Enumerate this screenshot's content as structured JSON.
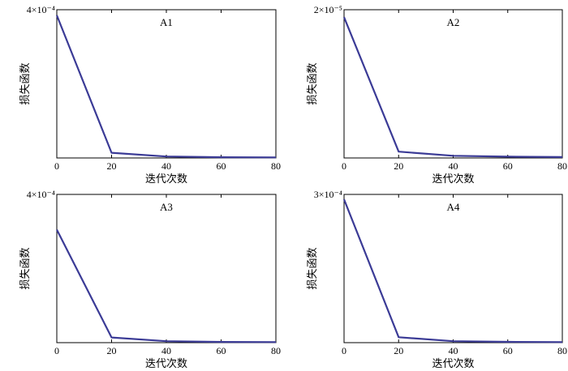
{
  "colors": {
    "series": "#3b3b96",
    "axis": "#000000"
  },
  "chart_data": [
    {
      "type": "line",
      "title": "A1",
      "xlabel": "迭代次数",
      "ylabel": "损失函数",
      "ymax_label": "4×10⁻⁴",
      "xlim": [
        0,
        80
      ],
      "ylim": [
        0,
        0.0004
      ],
      "xticks": [
        "0",
        "20",
        "40",
        "60",
        "80"
      ],
      "grid": false,
      "series": [
        {
          "x": [
            0,
            20,
            40,
            60,
            80
          ],
          "values": [
            0.000385,
            1.4e-05,
            4e-06,
            2e-06,
            1.5e-06
          ]
        }
      ]
    },
    {
      "type": "line",
      "title": "A2",
      "xlabel": "迭代次数",
      "ylabel": "损失函数",
      "ymax_label": "2×10⁻⁵",
      "xlim": [
        0,
        80
      ],
      "ylim": [
        0,
        2e-05
      ],
      "xticks": [
        "0",
        "20",
        "40",
        "60",
        "80"
      ],
      "grid": false,
      "series": [
        {
          "x": [
            0,
            20,
            40,
            60,
            80
          ],
          "values": [
            1.9e-05,
            8.5e-07,
            3e-07,
            1.8e-07,
            1.2e-07
          ]
        }
      ]
    },
    {
      "type": "line",
      "title": "A3",
      "xlabel": "迭代次数",
      "ylabel": "损失函数",
      "ymax_label": "4×10⁻⁴",
      "xlim": [
        0,
        80
      ],
      "ylim": [
        0,
        0.0004
      ],
      "xticks": [
        "0",
        "20",
        "40",
        "60",
        "80"
      ],
      "grid": false,
      "series": [
        {
          "x": [
            0,
            20,
            40,
            60,
            80
          ],
          "values": [
            0.000305,
            1.4e-05,
            4e-06,
            2e-06,
            1.5e-06
          ]
        }
      ]
    },
    {
      "type": "line",
      "title": "A4",
      "xlabel": "迭代次数",
      "ylabel": "损失函数",
      "ymax_label": "3×10⁻⁴",
      "xlim": [
        0,
        80
      ],
      "ylim": [
        0,
        0.0003
      ],
      "xticks": [
        "0",
        "20",
        "40",
        "60",
        "80"
      ],
      "grid": false,
      "series": [
        {
          "x": [
            0,
            20,
            40,
            60,
            80
          ],
          "values": [
            0.00029,
            1.1e-05,
            3e-06,
            1.6e-06,
            1.2e-06
          ]
        }
      ]
    }
  ]
}
